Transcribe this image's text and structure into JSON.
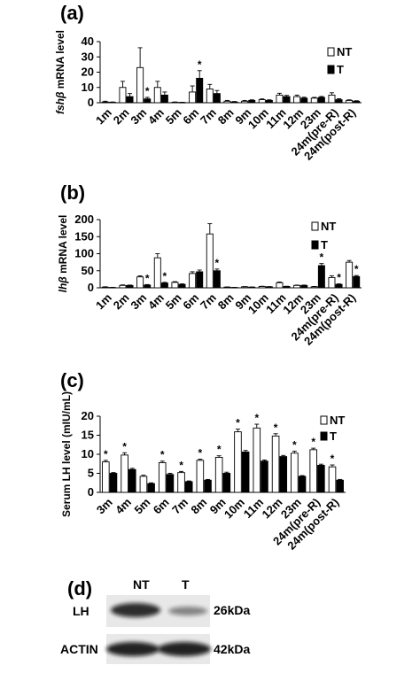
{
  "chart_data": [
    {
      "type": "bar",
      "panel": "(a)",
      "ylabel": "fshβ mRNA level",
      "ylim": [
        0,
        40
      ],
      "yticks": [
        0,
        10,
        20,
        30,
        40
      ],
      "categories": [
        "1m",
        "2m",
        "3m",
        "4m",
        "5m",
        "6m",
        "7m",
        "8m",
        "9m",
        "10m",
        "11m",
        "12m",
        "23m",
        "24m(pre-R)",
        "24m(post-R)"
      ],
      "series": [
        {
          "name": "NT",
          "color": "#ffffff",
          "values": [
            0.5,
            10,
            23,
            10,
            0.3,
            7,
            9,
            1,
            1,
            2,
            5,
            4,
            3,
            5,
            1.5
          ],
          "errors": [
            0.5,
            4,
            13,
            4,
            0.2,
            4,
            3,
            0.5,
            0.5,
            0.5,
            1.2,
            1,
            0.5,
            1.5,
            0.4
          ]
        },
        {
          "name": "T",
          "color": "#000000",
          "values": [
            0.3,
            4,
            2.5,
            5,
            0.2,
            16,
            6,
            0.5,
            1.5,
            1.5,
            4,
            3,
            3.5,
            2,
            1
          ],
          "errors": [
            0.2,
            2,
            1,
            2,
            0.1,
            5,
            2,
            0.3,
            0.4,
            0.4,
            0.8,
            0.6,
            0.6,
            0.6,
            0.3
          ]
        }
      ],
      "significance_T": [
        false,
        false,
        true,
        false,
        false,
        true,
        false,
        false,
        false,
        false,
        false,
        false,
        false,
        false,
        false
      ],
      "legend_position": "top-right"
    },
    {
      "type": "bar",
      "panel": "(b)",
      "ylabel": "lhβ mRNA level",
      "ylim": [
        0,
        200
      ],
      "yticks": [
        0,
        50,
        100,
        150,
        200
      ],
      "categories": [
        "1m",
        "2m",
        "3m",
        "4m",
        "5m",
        "6m",
        "7m",
        "8m",
        "9m",
        "10m",
        "11m",
        "12m",
        "23m",
        "24m(pre-R)",
        "24m(post-R)"
      ],
      "series": [
        {
          "name": "NT",
          "color": "#ffffff",
          "values": [
            2,
            7,
            32,
            88,
            16,
            42,
            158,
            2,
            3,
            4,
            15,
            7,
            3,
            30,
            75
          ],
          "errors": [
            1,
            1.5,
            3,
            12,
            2,
            5,
            30,
            0.5,
            0.5,
            0.6,
            2,
            1,
            1,
            5,
            5
          ]
        },
        {
          "name": "T",
          "color": "#000000",
          "values": [
            1,
            7,
            8,
            14,
            10,
            47,
            50,
            1,
            2,
            3,
            4,
            7,
            65,
            10,
            33
          ],
          "errors": [
            0.5,
            1,
            1.5,
            2,
            1.5,
            5,
            5,
            0.3,
            0.4,
            0.5,
            0.6,
            1,
            6,
            1.5,
            3
          ]
        }
      ],
      "significance_T": [
        false,
        false,
        true,
        true,
        false,
        false,
        true,
        false,
        false,
        false,
        false,
        false,
        true,
        true,
        true
      ],
      "legend_position": "top-right"
    },
    {
      "type": "bar",
      "panel": "(c)",
      "ylabel": "Serum LH level (mIU/mL)",
      "ylim": [
        0,
        20
      ],
      "yticks": [
        0,
        5,
        10,
        15,
        20
      ],
      "categories": [
        "3m",
        "4m",
        "5m",
        "6m",
        "7m",
        "8m",
        "9m",
        "10m",
        "11m",
        "12m",
        "23m",
        "24m(pre-R)",
        "24m(post-R)"
      ],
      "series": [
        {
          "name": "NT",
          "color": "#ffffff",
          "values": [
            8,
            9.8,
            4.2,
            7.8,
            5.2,
            8.4,
            9.2,
            15.9,
            16.9,
            14.8,
            10.3,
            11.2,
            6.7
          ],
          "errors": [
            0.4,
            0.6,
            0.3,
            0.4,
            0.3,
            0.3,
            0.4,
            0.7,
            1.0,
            0.6,
            0.5,
            0.4,
            0.5
          ]
        },
        {
          "name": "T",
          "color": "#000000",
          "values": [
            5,
            6,
            2.3,
            4.7,
            2.8,
            3.2,
            5,
            10.6,
            8.2,
            9.4,
            4.2,
            7.1,
            3.2
          ],
          "errors": [
            0.2,
            0.3,
            0.2,
            0.3,
            0.2,
            0.2,
            0.3,
            0.4,
            0.3,
            0.3,
            0.2,
            0.3,
            0.2
          ]
        }
      ],
      "significance_NT": [
        true,
        true,
        false,
        true,
        true,
        true,
        true,
        true,
        true,
        true,
        true,
        true,
        true
      ],
      "legend_position": "top-right"
    }
  ],
  "panel_d": {
    "label": "(d)",
    "lanes": [
      "NT",
      "T"
    ],
    "rows": [
      {
        "protein": "LH",
        "size": "26kDa",
        "band_intensity": [
          0.85,
          0.45
        ]
      },
      {
        "protein": "ACTIN",
        "size": "42kDa",
        "band_intensity": [
          0.9,
          0.9
        ]
      }
    ]
  }
}
